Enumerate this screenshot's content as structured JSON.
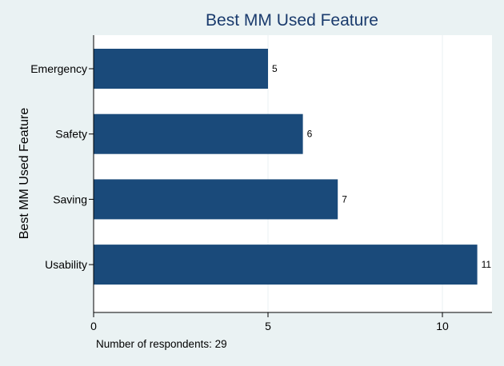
{
  "chart_data": {
    "type": "bar",
    "orientation": "horizontal",
    "title": "Best MM Used Feature",
    "ylabel": "Best MM Used Feature",
    "xlabel": "",
    "categories": [
      "Emergency",
      "Safety",
      "Saving",
      "Usability"
    ],
    "values": [
      5,
      6,
      7,
      11
    ],
    "value_labels": [
      "5",
      "6",
      "7",
      "11"
    ],
    "xlim": [
      0,
      11.5
    ],
    "xticks": [
      0,
      5,
      10
    ],
    "xtick_labels": [
      "0",
      "5",
      "10"
    ],
    "grid": "vertical",
    "bar_color": "#1a4a7a",
    "background_color": "#eaf2f3",
    "plot_background": "#ffffff",
    "grid_color": "#eaf2f3",
    "note": "Number of respondents: 29"
  }
}
